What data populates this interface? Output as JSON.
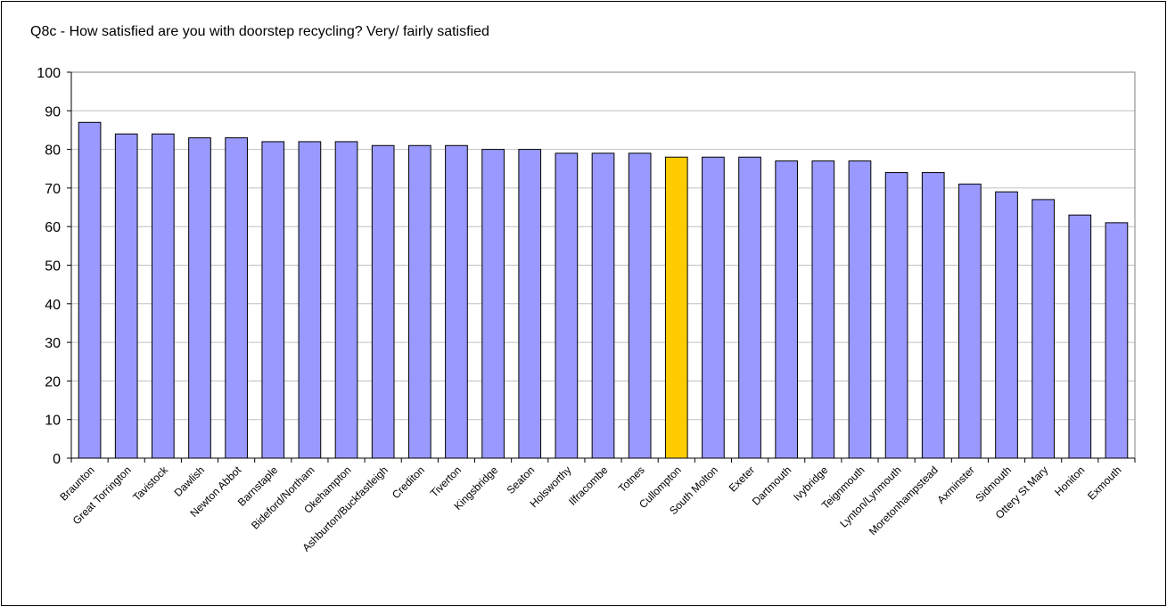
{
  "chart_data": {
    "type": "bar",
    "title": "Q8c - How satisfied are you with doorstep recycling? Very/ fairly satisfied",
    "xlabel": "",
    "ylabel": "",
    "ylim": [
      0,
      100
    ],
    "yticks": [
      0,
      10,
      20,
      30,
      40,
      50,
      60,
      70,
      80,
      90,
      100
    ],
    "grid": true,
    "legend": "none",
    "categories": [
      "Braunton",
      "Great Torrington",
      "Tavistock",
      "Dawlish",
      "Newton Abbot",
      "Barnstaple",
      "Bideford/Northam",
      "Okehampton",
      "Ashburton/Buckfastleigh",
      "Crediton",
      "Tiverton",
      "Kingsbridge",
      "Seaton",
      "Holsworthy",
      "Ilfracombe",
      "Totnes",
      "Cullompton",
      "South Molton",
      "Exeter",
      "Dartmouth",
      "Ivybridge",
      "Teignmouth",
      "Lynton/Lynmouth",
      "Moretonhampstead",
      "Axminster",
      "Sidmouth",
      "Ottery St Mary",
      "Honiton",
      "Exmouth"
    ],
    "values": [
      87,
      84,
      84,
      83,
      83,
      82,
      82,
      82,
      81,
      81,
      81,
      80,
      80,
      79,
      79,
      79,
      78,
      78,
      78,
      77,
      77,
      77,
      74,
      74,
      71,
      69,
      67,
      63,
      61
    ],
    "highlight": "Cullompton",
    "colors": {
      "bar": "#9999ff",
      "highlight": "#ffcc00",
      "grid": "#c0c0c0",
      "plot_border": "#808080",
      "axis": "#000000"
    }
  }
}
